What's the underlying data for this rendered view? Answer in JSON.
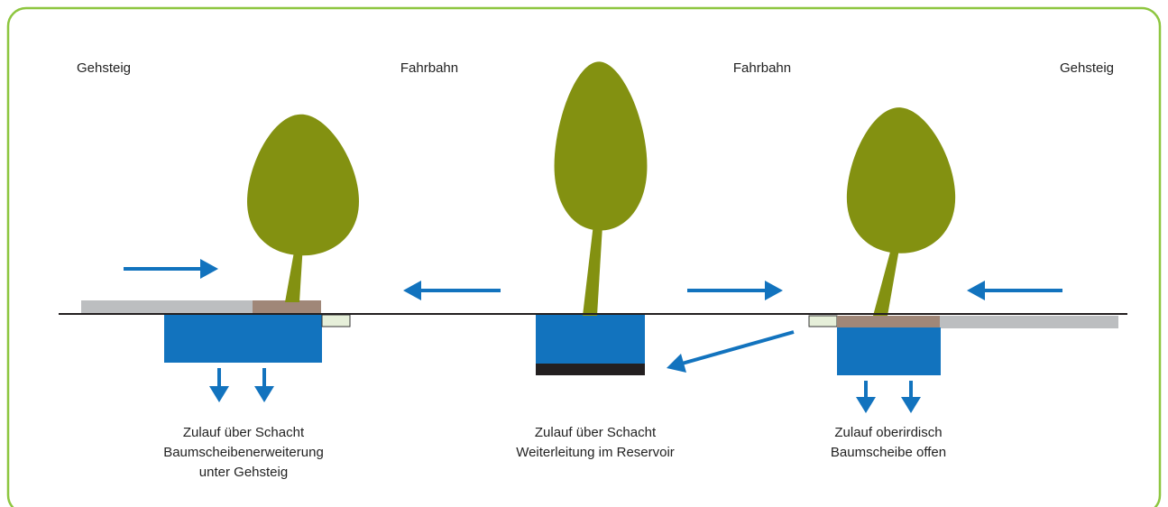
{
  "labels": [
    "Gehsteig",
    "Fahrbahn",
    "Fahrbahn",
    "Gehsteig"
  ],
  "captions": [
    {
      "lines": [
        "Zulauf über Schacht",
        "Baumscheibenerweiterung",
        "unter Gehsteig"
      ]
    },
    {
      "lines": [
        "Zulauf über Schacht",
        "Weiterleitung im Reservoir"
      ]
    },
    {
      "lines": [
        "Zulauf oberirdisch",
        "Baumscheibe offen"
      ]
    }
  ]
}
